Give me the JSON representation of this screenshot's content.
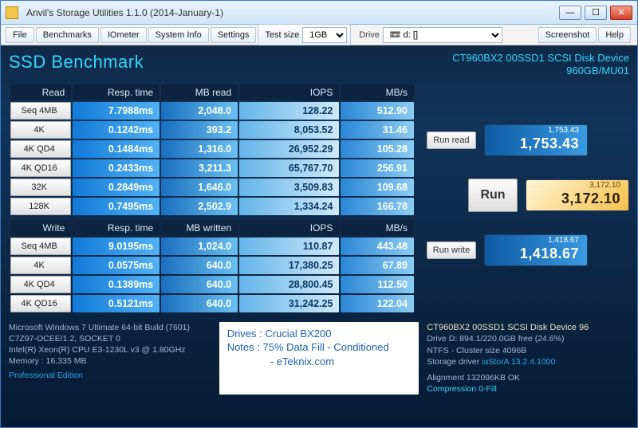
{
  "window": {
    "title": "Anvil's Storage Utilities 1.1.0 (2014-January-1)"
  },
  "menu": {
    "file": "File",
    "benchmarks": "Benchmarks",
    "iometer": "IOmeter",
    "system_info": "System Info",
    "settings": "Settings",
    "test_size_label": "Test size",
    "test_size_value": "1GB",
    "drive_label": "Drive",
    "drive_value": "📼 d: []",
    "screenshot": "Screenshot",
    "help": "Help"
  },
  "header": {
    "title": "SSD Benchmark",
    "device_line1": "CT960BX2 00SSD1 SCSI Disk Device",
    "device_line2": "960GB/MU01"
  },
  "read": {
    "headers": {
      "row": "Read",
      "rt": "Resp. time",
      "mb": "MB read",
      "iops": "IOPS",
      "mbs": "MB/s"
    },
    "rows": [
      {
        "label": "Seq 4MB",
        "rt": "7.7988ms",
        "mb": "2,048.0",
        "iops": "128.22",
        "mbs": "512.90"
      },
      {
        "label": "4K",
        "rt": "0.1242ms",
        "mb": "393.2",
        "iops": "8,053.52",
        "mbs": "31.46"
      },
      {
        "label": "4K QD4",
        "rt": "0.1484ms",
        "mb": "1,316.0",
        "iops": "26,952.29",
        "mbs": "105.28"
      },
      {
        "label": "4K QD16",
        "rt": "0.2433ms",
        "mb": "3,211.3",
        "iops": "65,767.70",
        "mbs": "256.91"
      },
      {
        "label": "32K",
        "rt": "0.2849ms",
        "mb": "1,646.0",
        "iops": "3,509.83",
        "mbs": "109.68"
      },
      {
        "label": "128K",
        "rt": "0.7495ms",
        "mb": "2,502.9",
        "iops": "1,334.24",
        "mbs": "166.78"
      }
    ]
  },
  "write": {
    "headers": {
      "row": "Write",
      "rt": "Resp. time",
      "mb": "MB written",
      "iops": "IOPS",
      "mbs": "MB/s"
    },
    "rows": [
      {
        "label": "Seq 4MB",
        "rt": "9.0195ms",
        "mb": "1,024.0",
        "iops": "110.87",
        "mbs": "443.48"
      },
      {
        "label": "4K",
        "rt": "0.0575ms",
        "mb": "640.0",
        "iops": "17,380.25",
        "mbs": "67.89"
      },
      {
        "label": "4K QD4",
        "rt": "0.1389ms",
        "mb": "640.0",
        "iops": "28,800.45",
        "mbs": "112.50"
      },
      {
        "label": "4K QD16",
        "rt": "0.5121ms",
        "mb": "640.0",
        "iops": "31,242.25",
        "mbs": "122.04"
      }
    ]
  },
  "buttons": {
    "run_read": "Run read",
    "run_write": "Run write",
    "run": "Run"
  },
  "scores": {
    "read": {
      "sm": "1,753.43",
      "bg": "1,753.43"
    },
    "total": {
      "sm": "3,172.10",
      "bg": "3,172.10"
    },
    "write": {
      "sm": "1,418.67",
      "bg": "1,418.67"
    }
  },
  "footer": {
    "sys": {
      "l1": "Microsoft Windows 7 Ultimate  64-bit Build (7601)",
      "l2": "C7Z97-OCEE/1.2, SOCKET 0",
      "l3": "Intel(R) Xeon(R) CPU E3-1230L v3 @ 1.80GHz",
      "l4": "Memory :  16,335 MB",
      "pro": "Professional Edition"
    },
    "notes": {
      "l1": "Drives : Crucial BX200",
      "l2": "Notes :  75% Data Fill - Conditioned",
      "l3": "               - eTeknix.com"
    },
    "drive": {
      "hdr": "CT960BX2 00SSD1 SCSI Disk Device 96",
      "l1a": "Drive D: 894.1/220.0GB free (24.6%)",
      "l2": "NTFS - Cluster size 4096B",
      "l3a": "Storage driver ",
      "l3b": "iaStorA 13.2.4.1000",
      "l4": "Alignment 132096KB OK",
      "l5": "Compression 0-Fill"
    }
  },
  "colors": {
    "col_rt": "cell-b1",
    "col_mb": "cell-b2",
    "col_iops": "cell-b3",
    "col_mbs": "cell-b4"
  }
}
